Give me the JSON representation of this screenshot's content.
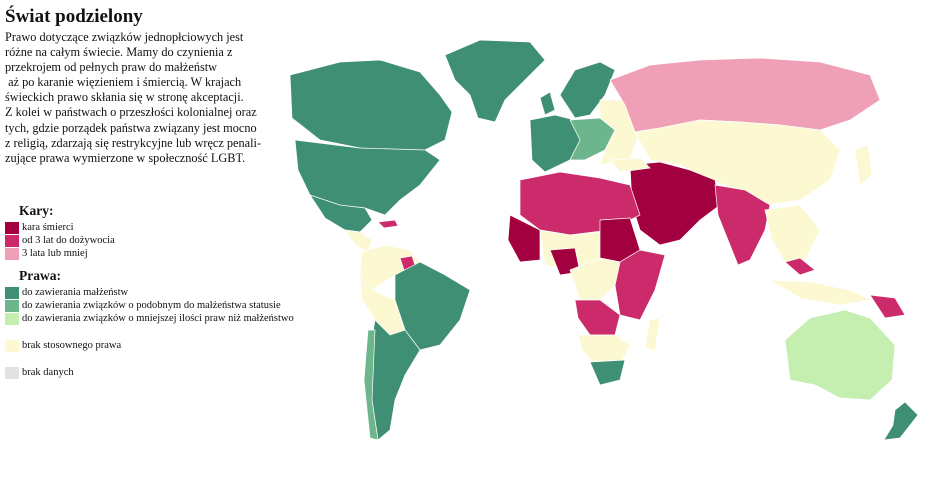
{
  "header": {
    "title": "Świat podzielony",
    "description": [
      "Prawo dotyczące związków jednopłciowych jest",
      "różne na całym świecie. Mamy do czynienia z",
      "przekrojem od pełnych praw do małżeństw",
      " aż po karanie więzieniem i śmiercią. W krajach",
      "świeckich prawo skłania się w stronę akceptacji.",
      "Z kolei w państwach o przeszłości kolonialnej oraz",
      "tych, gdzie porządek państwa związany jest mocno",
      "z religią, zdarzają się restrykcyjne lub wręcz penali-",
      "zujące prawa wymierzone w społeczność LGBT."
    ]
  },
  "legend": {
    "sections": [
      {
        "title": "Kary:",
        "items": [
          {
            "label": "kara śmierci",
            "color": "#a3003f"
          },
          {
            "label": "od 3 lat do dożywocia",
            "color": "#cc2b6b"
          },
          {
            "label": "3 lata lub mniej",
            "color": "#f0a0b6"
          }
        ]
      },
      {
        "title": "Prawa:",
        "items": [
          {
            "label": "do zawierania małżeństw",
            "color": "#3f8f74"
          },
          {
            "label": "do zawierania związków o podobnym do małżeństwa statusie",
            "color": "#6cb58d"
          },
          {
            "label": "do zawierania związków o mniejszej ilości praw niż małżeństwo",
            "color": "#c4efb1"
          }
        ]
      }
    ],
    "other": [
      {
        "label": "brak stosownego prawa",
        "color": "#fbf8d2"
      },
      {
        "label": "brak danych",
        "color": "#e2e2e2"
      }
    ]
  }
}
